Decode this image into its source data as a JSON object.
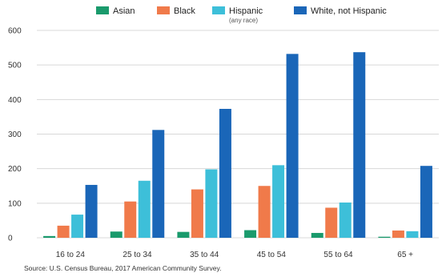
{
  "chart_data": {
    "type": "bar",
    "categories": [
      "16 to 24",
      "25 to 34",
      "35 to 44",
      "45 to 54",
      "55 to 64",
      "65 +"
    ],
    "series": [
      {
        "name": "Asian",
        "color": "#1a9a6c",
        "values": [
          5,
          18,
          17,
          22,
          14,
          3
        ]
      },
      {
        "name": "Black",
        "color": "#f07a4a",
        "values": [
          35,
          105,
          140,
          150,
          87,
          21
        ]
      },
      {
        "name": "Hispanic",
        "sublabel": "(any race)",
        "color": "#3dbfd9",
        "values": [
          67,
          165,
          198,
          210,
          102,
          19
        ]
      },
      {
        "name": "White, not Hispanic",
        "color": "#1a66b8",
        "values": [
          153,
          312,
          373,
          532,
          537,
          208
        ]
      }
    ],
    "yticks": [
      0,
      100,
      200,
      300,
      400,
      500,
      600
    ],
    "ylim": [
      0,
      600
    ],
    "grid": true,
    "legend": "top",
    "source": "Source: U.S. Census Bureau, 2017 American Community Survey."
  }
}
